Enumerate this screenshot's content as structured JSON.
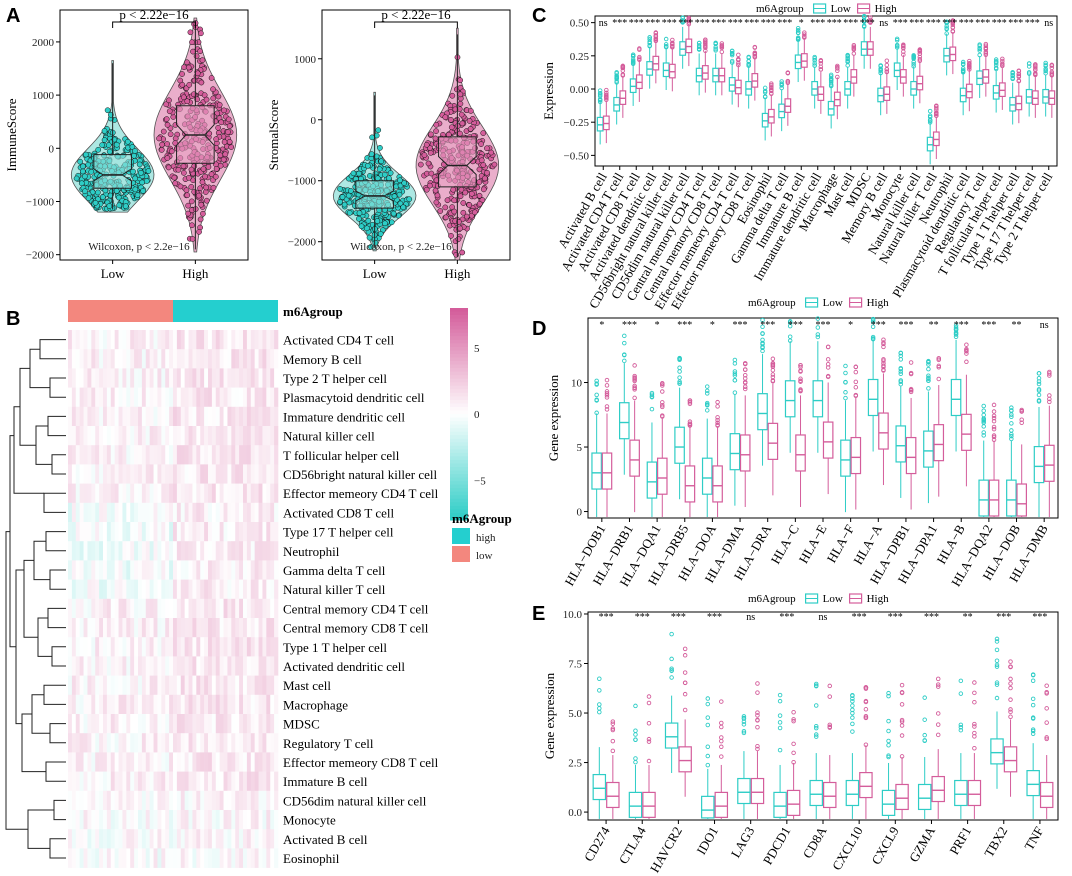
{
  "colors": {
    "low": "#2ecdc6",
    "high": "#d45d9b",
    "low_fill": "#9fe4df",
    "high_fill": "#e7a1c3",
    "annot_high": "#24cfcf",
    "annot_low": "#f3877e"
  },
  "panel_labels": {
    "a": "A",
    "b": "B",
    "c": "C",
    "d": "D",
    "e": "E"
  },
  "chart_data": [
    {
      "id": "A1",
      "type": "violin-box",
      "ylabel": "ImmuneScore",
      "categories": [
        "Low",
        "High"
      ],
      "ylim": [
        -2100,
        2600
      ],
      "yticks": [
        -2000,
        -1000,
        0,
        1000,
        2000
      ],
      "bracket_label": "p < 2.22e−16",
      "test_label": "Wilcoxon, p < 2.2e−16",
      "groups": [
        {
          "name": "Low",
          "q1": -750,
          "median": -500,
          "q3": -120,
          "min": -1150,
          "max": 1600,
          "vmin": -1200,
          "vmax": 1650
        },
        {
          "name": "High",
          "q1": -280,
          "median": 250,
          "q3": 800,
          "min": -1900,
          "max": 2400,
          "vmin": -1950,
          "vmax": 2450
        }
      ]
    },
    {
      "id": "A2",
      "type": "violin-box",
      "ylabel": "StromalScore",
      "categories": [
        "Low",
        "High"
      ],
      "ylim": [
        -2300,
        1800
      ],
      "yticks": [
        -2000,
        -1000,
        0,
        1000
      ],
      "bracket_label": "p < 2.22e−16",
      "test_label": "Wilcoxon, p < 2.2e−16",
      "groups": [
        {
          "name": "Low",
          "q1": -1450,
          "median": -1250,
          "q3": -1000,
          "min": -2100,
          "max": 400,
          "vmin": -2150,
          "vmax": 450
        },
        {
          "name": "High",
          "q1": -1100,
          "median": -750,
          "q3": -280,
          "min": -2250,
          "max": 1400,
          "vmin": -2300,
          "vmax": 1500
        }
      ]
    },
    {
      "id": "C",
      "type": "box",
      "legend_title": "m6Agroup",
      "legend_low": "Low",
      "legend_high": "High",
      "ylabel": "Expression",
      "ylim": [
        -0.58,
        0.55
      ],
      "yticks": [
        -0.5,
        -0.25,
        0.0,
        0.25,
        0.5
      ],
      "ytick_labels": [
        "−0.50",
        "−0.25",
        "0.00",
        "0.25",
        "0.50"
      ],
      "categories": [
        "Activated B cell",
        "Activated CD4 T cell",
        "Activated CD8 T cell",
        "Activated dendritic cell",
        "CD56bright natural killer cell",
        "CD56dim natural killer cell",
        "Central memory CD4 T cell",
        "Central memory CD8 T cell",
        "Effector memeory CD4 T cell",
        "Effector memeory CD8 T cell",
        "Eosinophil",
        "Gamma delta T cell",
        "Immature  B cell",
        "Immature dendritic cell",
        "Macrophage",
        "Mast cell",
        "MDSC",
        "Memory B cell",
        "Monocyte",
        "Natural killer cell",
        "Natural killer T cell",
        "Neutrophil",
        "Plasmacytoid dendritic cell",
        "Regulatory T cell",
        "T follicular helper cell",
        "Type 1 T helper cell",
        "Type 17 T helper cell",
        "Type 2 T helper cell"
      ],
      "significance": [
        "ns",
        "***",
        "***",
        "***",
        "***",
        "***",
        "***",
        "***",
        "***",
        "***",
        "***",
        "***",
        "*",
        "***",
        "***",
        "***",
        "***",
        "ns",
        "***",
        "***",
        "***",
        "***",
        "***",
        "***",
        "***",
        "***",
        "***",
        "ns"
      ],
      "low_median": [
        -0.27,
        -0.12,
        0.02,
        0.15,
        0.14,
        0.3,
        0.1,
        0.1,
        0.03,
        0.0,
        -0.24,
        -0.17,
        0.2,
        0.0,
        -0.15,
        0.0,
        0.3,
        -0.05,
        0.14,
        0.0,
        -0.42,
        0.25,
        -0.05,
        0.08,
        -0.03,
        -0.12,
        -0.06,
        -0.06
      ],
      "high_median": [
        -0.26,
        -0.07,
        0.05,
        0.19,
        0.13,
        0.32,
        0.12,
        0.1,
        0.01,
        0.06,
        -0.21,
        -0.13,
        0.21,
        -0.04,
        -0.08,
        0.09,
        0.3,
        -0.04,
        0.09,
        0.04,
        -0.38,
        0.26,
        -0.02,
        0.09,
        -0.01,
        -0.11,
        -0.07,
        -0.07
      ]
    },
    {
      "id": "D",
      "type": "box",
      "legend_title": "m6Agroup",
      "legend_low": "Low",
      "legend_high": "High",
      "ylabel": "Gene expression",
      "ylim": [
        -0.5,
        15
      ],
      "yticks": [
        0,
        5,
        10
      ],
      "categories": [
        "HLA−DOB1",
        "HLA−DRB1",
        "HLA−DQA1",
        "HLA−DRB5",
        "HLA−DOA",
        "HLA−DMA",
        "HLA−DRA",
        "HLA−C",
        "HLA−E",
        "HLA−F",
        "HLA−A",
        "HLA−DPB1",
        "HLA−DPA1",
        "HLA−B",
        "HLA−DQA2",
        "HLA−DOB",
        "HLA−DMB"
      ],
      "significance": [
        "*",
        "***",
        "*",
        "***",
        "*",
        "***",
        "***",
        "***",
        "***",
        "*",
        "***",
        "***",
        "**",
        "***",
        "***",
        "**",
        "ns"
      ],
      "low_median": [
        3.0,
        6.9,
        2.3,
        5.0,
        2.6,
        4.5,
        7.6,
        8.6,
        8.6,
        4.0,
        8.7,
        5.1,
        4.7,
        8.7,
        0.9,
        0.9,
        3.5
      ],
      "high_median": [
        3.0,
        4.0,
        2.6,
        2.0,
        2.0,
        4.4,
        5.3,
        4.4,
        5.4,
        4.2,
        6.1,
        4.2,
        5.2,
        6.0,
        0.9,
        0.6,
        3.6
      ]
    },
    {
      "id": "E",
      "type": "box",
      "legend_title": "m6Agroup",
      "legend_low": "Low",
      "legend_high": "High",
      "ylabel": "Gene expression",
      "ylim": [
        -0.4,
        10.1
      ],
      "yticks": [
        0,
        2.5,
        5,
        7.5,
        10
      ],
      "ytick_labels": [
        "0.0",
        "2.5",
        "5.0",
        "7.5",
        "10.0"
      ],
      "categories": [
        "CD274",
        "CTLA4",
        "HAVCR2",
        "IDO1",
        "LAG3",
        "PDCD1",
        "CD8A",
        "CXCL10",
        "CXCL9",
        "GZMA",
        "PRF1",
        "TBX2",
        "TNF"
      ],
      "significance": [
        "***",
        "***",
        "***",
        "***",
        "ns",
        "***",
        "ns",
        "***",
        "***",
        "***",
        "**",
        "***",
        "***"
      ],
      "low_median": [
        1.2,
        0.3,
        3.8,
        0.1,
        1.0,
        0.3,
        0.9,
        0.9,
        0.4,
        0.7,
        0.9,
        3.0,
        1.4
      ],
      "high_median": [
        0.8,
        0.3,
        2.6,
        0.3,
        1.0,
        0.4,
        0.8,
        1.3,
        0.7,
        1.1,
        0.9,
        2.6,
        0.8
      ]
    },
    {
      "id": "B",
      "type": "heatmap",
      "annotation_title": "m6Agroup",
      "legend_title": "m6Agroup",
      "legend_items": [
        "high",
        "low"
      ],
      "colorbar_ticks": [
        5,
        0,
        -5
      ],
      "colorbar_tick_labels": [
        "5",
        "0",
        "−5"
      ],
      "colorbar_range": [
        -8,
        8
      ],
      "rows": [
        "Activated CD4 T cell",
        "Memory B cell",
        "Type 2 T helper cell",
        "Plasmacytoid dendritic cell",
        "Immature dendritic cell",
        "Natural killer cell",
        "T follicular helper cell",
        "CD56bright natural killer cell",
        "Effector memeory CD4 T cell",
        "Activated CD8 T cell",
        "Type 17 T helper cell",
        "Neutrophil",
        "Gamma delta T cell",
        "Natural killer T cell",
        "Central memory CD4 T cell",
        "Central memory CD8 T cell",
        "Type 1 T helper cell",
        "Activated dendritic cell",
        "Mast cell",
        "Macrophage",
        "MDSC",
        "Regulatory T cell",
        "Effector memeory CD8 T cell",
        "Immature  B cell",
        "CD56dim natural killer cell",
        "Monocyte",
        "Activated B cell",
        "Eosinophil"
      ],
      "group_fraction_low": 0.5
    }
  ]
}
